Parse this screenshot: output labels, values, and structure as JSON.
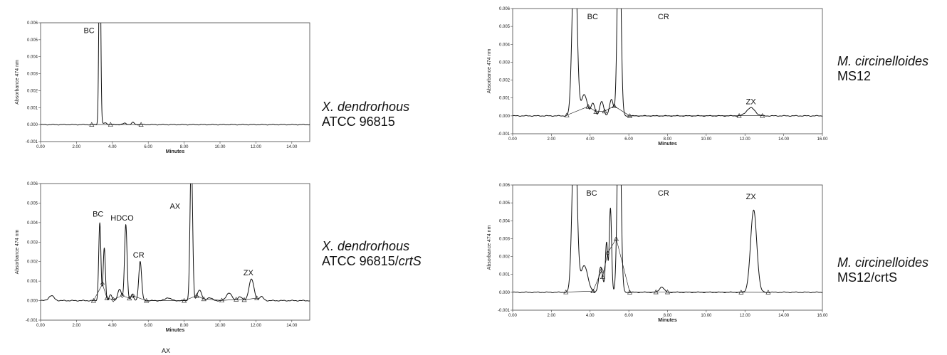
{
  "strains": [
    {
      "species": "X. dendrorhous",
      "strain": "ATCC 96815",
      "suffix": ""
    },
    {
      "species": "X. dendrorhous",
      "strain": "ATCC 96815/",
      "suffix": "crtS"
    },
    {
      "species": "M. circinelloides",
      "strain": "MS12",
      "suffix": ""
    },
    {
      "species": "M. circinelloides",
      "strain": "MS12/crtS",
      "suffix": ""
    }
  ],
  "stray_text": "AX",
  "chart_data": [
    {
      "type": "line",
      "xlabel": "Minutes",
      "ylabel": "Absorbance  474 nm",
      "xlim": [
        0,
        15
      ],
      "ylim": [
        -0.001,
        0.006
      ],
      "xticks": [
        "0.00",
        "2.00",
        "4.00",
        "6.00",
        "8.00",
        "10.00",
        "12.00",
        "14.00"
      ],
      "yticks": [
        "-0.001",
        "0.000",
        "0.001",
        "0.002",
        "0.003",
        "0.004",
        "0.005",
        "0.006"
      ],
      "peaks": [
        {
          "label": "BC",
          "x": 3.3,
          "height": 0.012,
          "width": 0.05
        },
        {
          "label": "",
          "x": 3.6,
          "height": 0.0001,
          "width": 0.1
        },
        {
          "label": "",
          "x": 4.7,
          "height": 8e-05,
          "width": 0.1
        },
        {
          "label": "",
          "x": 5.15,
          "height": 0.00012,
          "width": 0.08
        }
      ],
      "labels": [
        {
          "text": "BC",
          "x": 2.4,
          "y": 0.0054
        }
      ],
      "markers": [
        2.85,
        3.9,
        5.6
      ],
      "markerShape": [
        "triangle",
        "triangle",
        "triangle"
      ]
    },
    {
      "type": "line",
      "xlabel": "Minutes",
      "ylabel": "Absorbance  474 nm",
      "xlim": [
        0,
        15
      ],
      "ylim": [
        -0.001,
        0.006
      ],
      "xticks": [
        "0.00",
        "2.00",
        "4.00",
        "6.00",
        "8.00",
        "10.00",
        "12.00",
        "14.00"
      ],
      "yticks": [
        "-0.001",
        "0.000",
        "0.001",
        "0.002",
        "0.003",
        "0.004",
        "0.005",
        "0.006"
      ],
      "peaks": [
        {
          "label": "",
          "x": 0.6,
          "height": 0.00025,
          "width": 0.15
        },
        {
          "label": "BC",
          "x": 3.3,
          "height": 0.004,
          "width": 0.06
        },
        {
          "label": "",
          "x": 3.55,
          "height": 0.0027,
          "width": 0.06
        },
        {
          "label": "",
          "x": 3.9,
          "height": 0.0003,
          "width": 0.08
        },
        {
          "label": "",
          "x": 4.4,
          "height": 0.0006,
          "width": 0.1
        },
        {
          "label": "HDCO",
          "x": 4.75,
          "height": 0.0039,
          "width": 0.07
        },
        {
          "label": "",
          "x": 5.1,
          "height": 0.0003,
          "width": 0.08
        },
        {
          "label": "CR",
          "x": 5.55,
          "height": 0.002,
          "width": 0.08
        },
        {
          "label": "",
          "x": 7.1,
          "height": 0.00015,
          "width": 0.15
        },
        {
          "label": "AX",
          "x": 8.4,
          "height": 0.0075,
          "width": 0.07
        },
        {
          "label": "",
          "x": 8.85,
          "height": 0.00055,
          "width": 0.12
        },
        {
          "label": "",
          "x": 9.4,
          "height": 0.00015,
          "width": 0.15
        },
        {
          "label": "",
          "x": 10.5,
          "height": 0.0004,
          "width": 0.15
        },
        {
          "label": "",
          "x": 11.1,
          "height": 0.0002,
          "width": 0.12
        },
        {
          "label": "ZX",
          "x": 11.75,
          "height": 0.0011,
          "width": 0.14
        },
        {
          "label": "",
          "x": 12.3,
          "height": 0.0002,
          "width": 0.12
        }
      ],
      "labels": [
        {
          "text": "BC",
          "x": 2.9,
          "y": 0.0043
        },
        {
          "text": "HDCO",
          "x": 3.9,
          "y": 0.0041
        },
        {
          "text": "CR",
          "x": 5.15,
          "y": 0.0022
        },
        {
          "text": "AX",
          "x": 7.2,
          "y": 0.0047
        },
        {
          "text": "ZX",
          "x": 11.3,
          "y": 0.0013
        }
      ],
      "markers": [
        2.95,
        3.45,
        3.7,
        4.05,
        4.55,
        4.95,
        5.15,
        5.9,
        8.0,
        8.7,
        9.1,
        10.1,
        10.9,
        11.35,
        12.05
      ],
      "markerShape": [
        "triangle",
        "diamond",
        "triangle",
        "diamond",
        "diamond",
        "triangle",
        "diamond",
        "triangle",
        "triangle",
        "triangle",
        "triangle",
        "triangle",
        "triangle",
        "triangle",
        "triangle"
      ]
    },
    {
      "type": "line",
      "xlabel": "Minutes",
      "ylabel": "Absorbance  474 nm",
      "xlim": [
        0,
        16
      ],
      "ylim": [
        -0.001,
        0.006
      ],
      "xticks": [
        "0.00",
        "2.00",
        "4.00",
        "6.00",
        "8.00",
        "10.00",
        "12.00",
        "14.00",
        "16.00"
      ],
      "yticks": [
        "-0.001",
        "0.000",
        "0.001",
        "0.002",
        "0.003",
        "0.004",
        "0.005",
        "0.006"
      ],
      "peaks": [
        {
          "label": "BC",
          "x": 3.2,
          "height": 0.01,
          "width": 0.12
        },
        {
          "label": "",
          "x": 3.7,
          "height": 0.0012,
          "width": 0.15
        },
        {
          "label": "",
          "x": 4.15,
          "height": 0.0007,
          "width": 0.1
        },
        {
          "label": "",
          "x": 4.6,
          "height": 0.0008,
          "width": 0.1
        },
        {
          "label": "",
          "x": 5.1,
          "height": 0.0009,
          "width": 0.1
        },
        {
          "label": "CR",
          "x": 5.5,
          "height": 0.012,
          "width": 0.09
        },
        {
          "label": "ZX",
          "x": 12.3,
          "height": 0.00045,
          "width": 0.22
        }
      ],
      "labels": [
        {
          "text": "BC",
          "x": 3.85,
          "y": 0.0054
        },
        {
          "text": "CR",
          "x": 7.5,
          "y": 0.0054
        },
        {
          "text": "ZX",
          "x": 12.05,
          "y": 0.00065
        }
      ],
      "markers": [
        2.8,
        3.9,
        4.3,
        4.75,
        5.25,
        6.05,
        11.7,
        12.9
      ],
      "markerShape": [
        "triangle",
        "triangle",
        "triangle",
        "triangle",
        "triangle",
        "triangle",
        "triangle",
        "triangle"
      ]
    },
    {
      "type": "line",
      "xlabel": "Minutes",
      "ylabel": "Absorbance  474 nm",
      "xlim": [
        0,
        16
      ],
      "ylim": [
        -0.001,
        0.006
      ],
      "xticks": [
        "0.00",
        "2.00",
        "4.00",
        "6.00",
        "8.00",
        "10.00",
        "12.00",
        "14.00",
        "16.00"
      ],
      "yticks": [
        "-0.001",
        "0.000",
        "0.001",
        "0.002",
        "0.003",
        "0.004",
        "0.005",
        "0.006"
      ],
      "peaks": [
        {
          "label": "BC",
          "x": 3.2,
          "height": 0.01,
          "width": 0.12
        },
        {
          "label": "",
          "x": 3.7,
          "height": 0.0015,
          "width": 0.18
        },
        {
          "label": "",
          "x": 4.55,
          "height": 0.0014,
          "width": 0.1
        },
        {
          "label": "",
          "x": 4.85,
          "height": 0.0028,
          "width": 0.06
        },
        {
          "label": "",
          "x": 5.05,
          "height": 0.0047,
          "width": 0.06
        },
        {
          "label": "CR",
          "x": 5.5,
          "height": 0.012,
          "width": 0.09
        },
        {
          "label": "",
          "x": 7.7,
          "height": 0.0003,
          "width": 0.12
        },
        {
          "label": "ZX",
          "x": 12.45,
          "height": 0.0046,
          "width": 0.16
        }
      ],
      "labels": [
        {
          "text": "BC",
          "x": 3.8,
          "y": 0.0054
        },
        {
          "text": "CR",
          "x": 7.5,
          "y": 0.0054
        },
        {
          "text": "ZX",
          "x": 12.05,
          "y": 0.0052
        }
      ],
      "markers": [
        2.75,
        4.15,
        4.6,
        4.65,
        4.9,
        5.35,
        6.05,
        7.4,
        8.0,
        11.8,
        13.2
      ],
      "markerShape": [
        "triangle",
        "triangle",
        "triangle",
        "triangle",
        "diamond",
        "triangle",
        "triangle",
        "triangle",
        "triangle",
        "triangle",
        "triangle"
      ]
    }
  ]
}
